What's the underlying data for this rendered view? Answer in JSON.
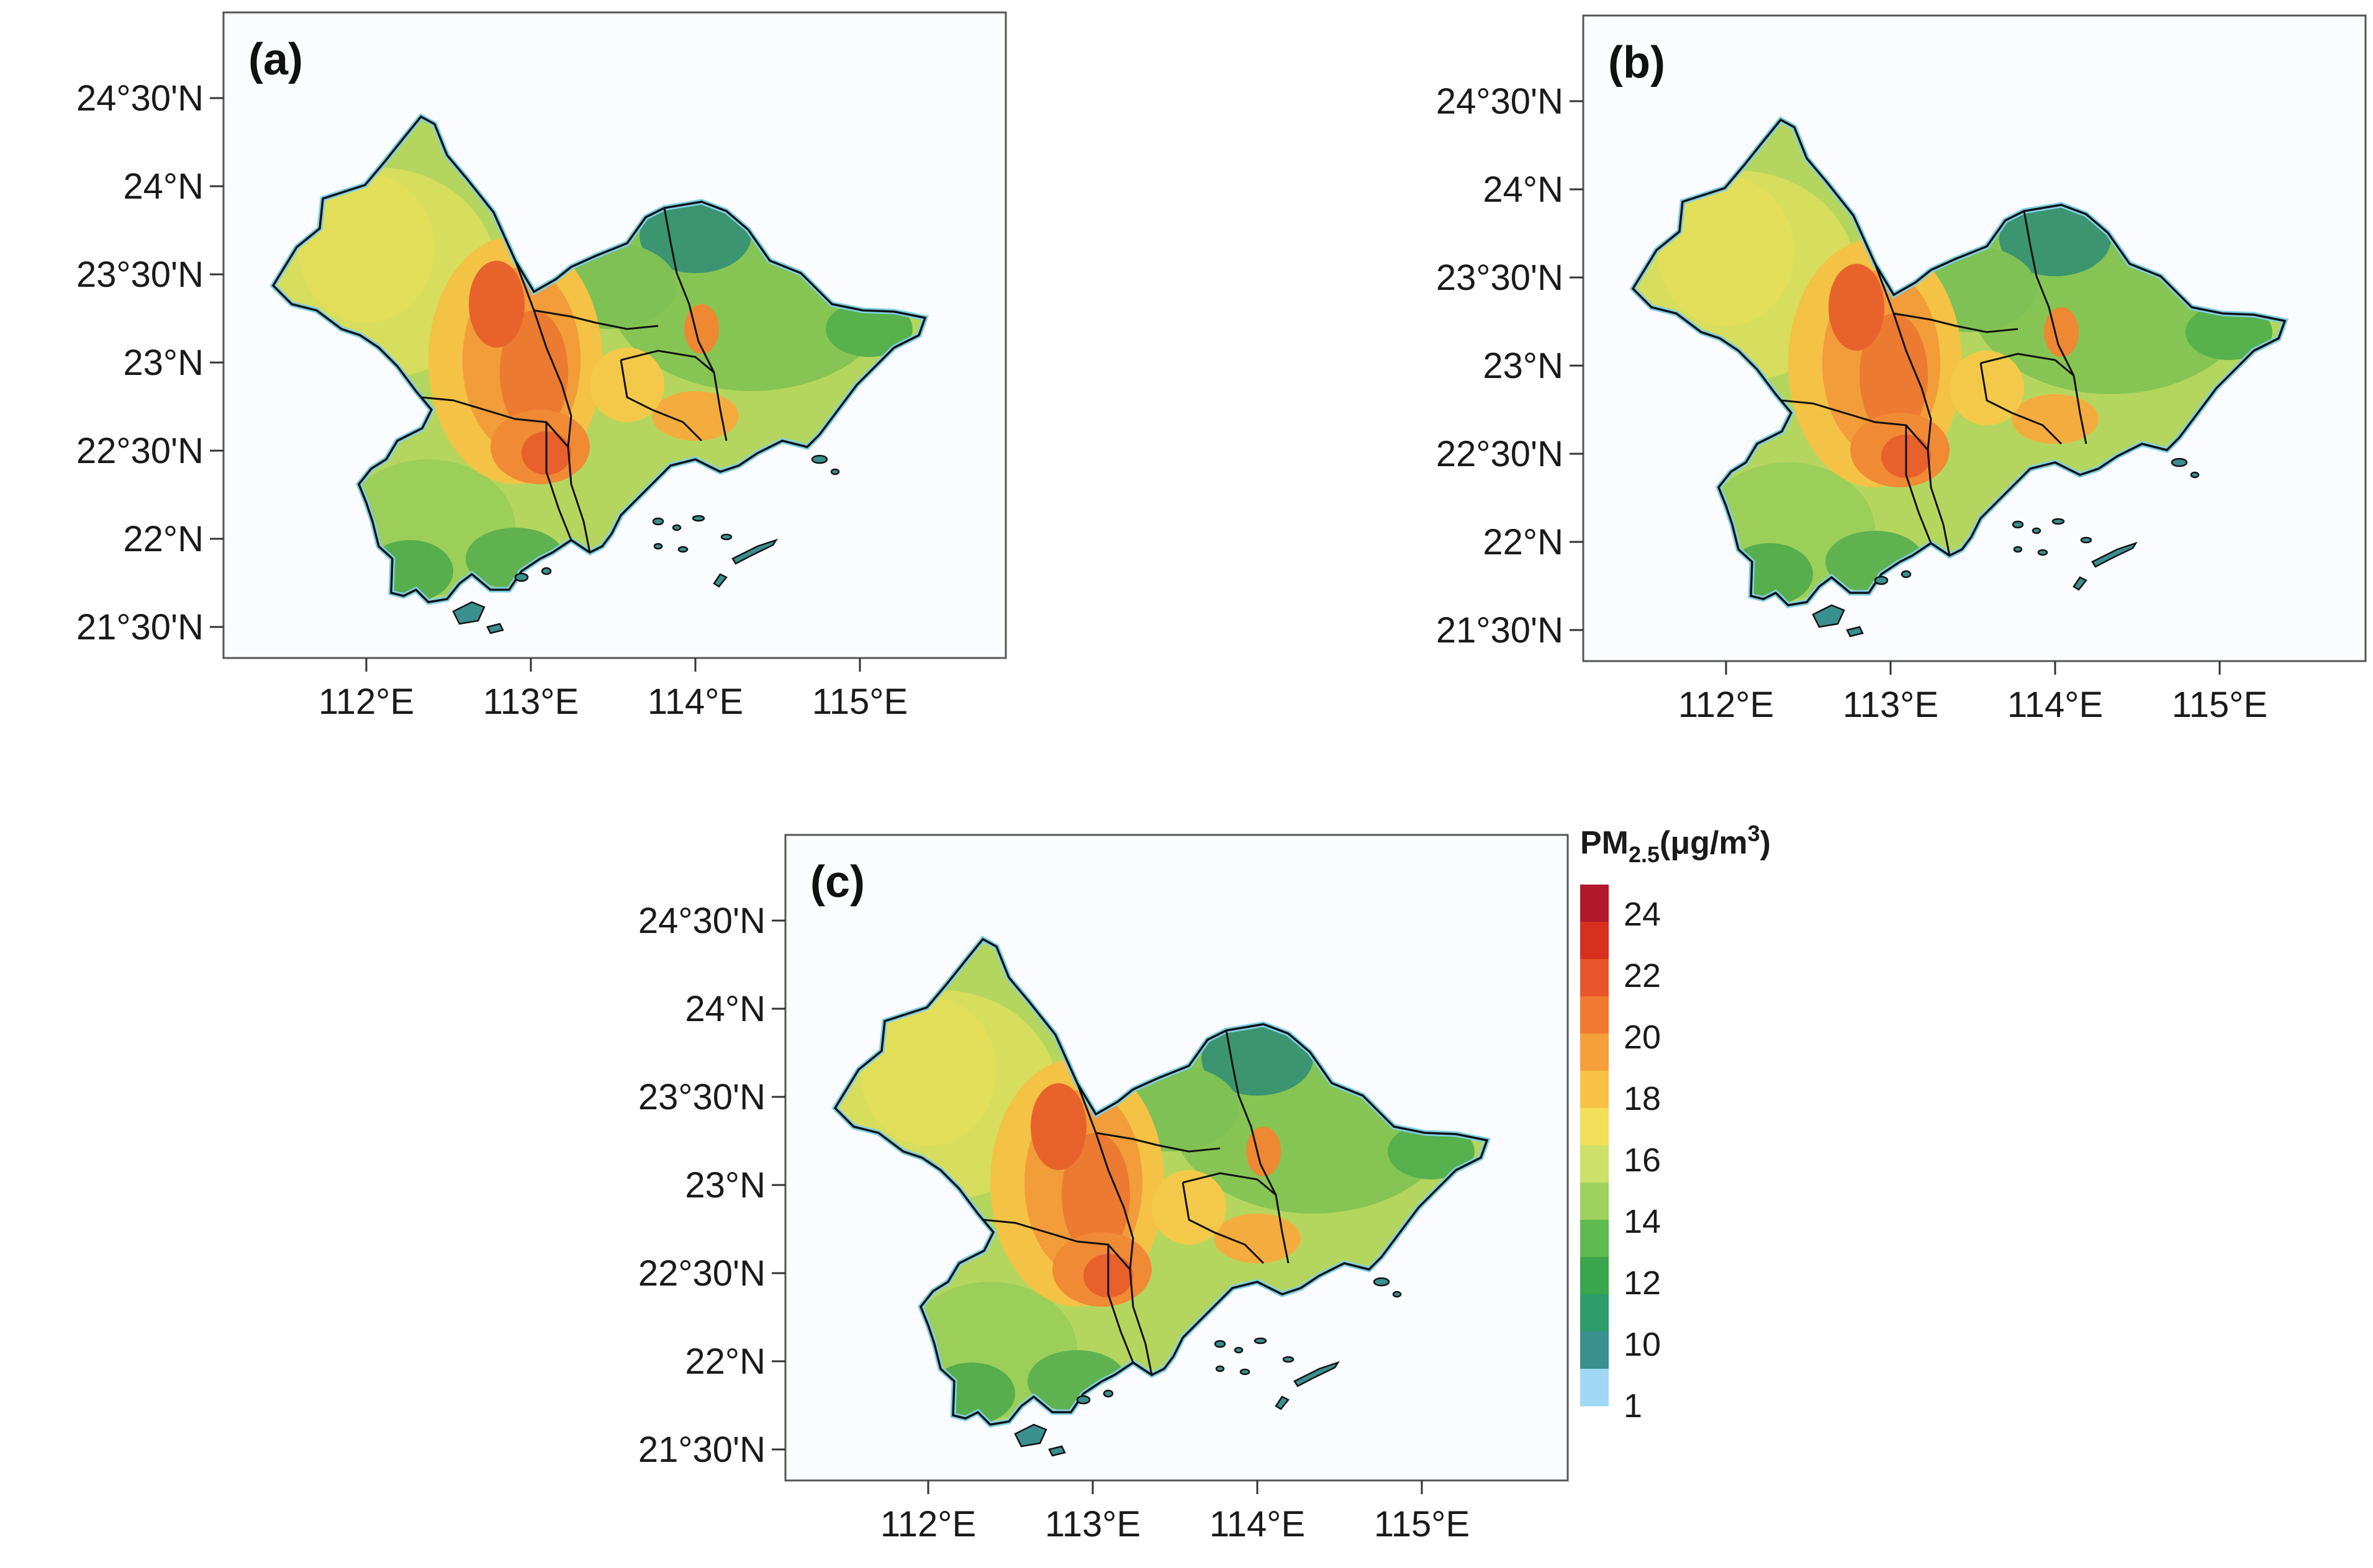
{
  "figure": {
    "panels": [
      {
        "label": "(a)",
        "lat_ticks": [
          "24°30'N",
          "24°N",
          "23°30'N",
          "23°N",
          "22°30'N",
          "22°N",
          "21°30'N"
        ],
        "lon_ticks": [
          "112°E",
          "113°E",
          "114°E",
          "115°E"
        ]
      },
      {
        "label": "(b)",
        "lat_ticks": [
          "24°30'N",
          "24°N",
          "23°30'N",
          "23°N",
          "22°30'N",
          "22°N",
          "21°30'N"
        ],
        "lon_ticks": [
          "112°E",
          "113°E",
          "114°E",
          "115°E"
        ]
      },
      {
        "label": "(c)",
        "lat_ticks": [
          "24°30'N",
          "24°N",
          "23°30'N",
          "23°N",
          "22°30'N",
          "22°N",
          "21°30'N"
        ],
        "lon_ticks": [
          "112°E",
          "113°E",
          "114°E",
          "115°E"
        ]
      }
    ],
    "colorbar": {
      "title_main": "PM",
      "title_sub": "2.5",
      "title_unit_pre": "(μg/m",
      "title_sup": "3",
      "title_unit_post": ")",
      "labels": [
        "24",
        "22",
        "20",
        "18",
        "16",
        "14",
        "12",
        "10",
        "1"
      ],
      "colors": [
        "#b2182b",
        "#d7301f",
        "#e8552a",
        "#f07a2f",
        "#f5a03a",
        "#f9c247",
        "#f2df5a",
        "#cde067",
        "#9fd15f",
        "#5fbb4f",
        "#3aa64c",
        "#2d9b6a",
        "#3a8f8f",
        "#9fd8f5"
      ]
    }
  },
  "colors": {
    "map_background": "#fafcff",
    "frame": "#555555",
    "boundary": "#111111"
  }
}
